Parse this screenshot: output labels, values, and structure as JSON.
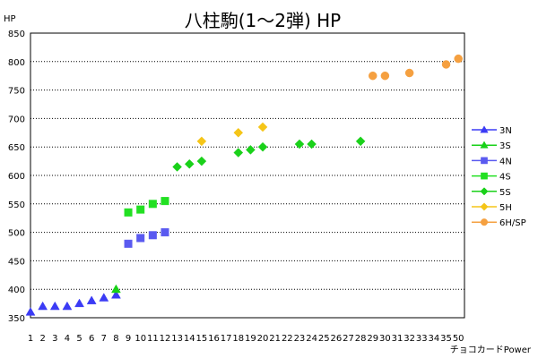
{
  "chart_data": {
    "type": "scatter",
    "title": "八柱駒(1～2弾) HP",
    "ylabel": "HP",
    "xlabel": "チョコカードPower",
    "ylim": [
      350,
      850
    ],
    "yticks": [
      350,
      400,
      450,
      500,
      550,
      600,
      650,
      700,
      750,
      800,
      850
    ],
    "xticks": [
      "1",
      "2",
      "3",
      "4",
      "5",
      "6",
      "7",
      "8",
      "9",
      "10",
      "11",
      "12",
      "13",
      "14",
      "15",
      "16",
      "17",
      "18",
      "19",
      "20",
      "21",
      "22",
      "23",
      "24",
      "25",
      "26",
      "27",
      "28",
      "29",
      "30",
      "31",
      "32",
      "33",
      "34",
      "35",
      "50"
    ],
    "grid": "horizontal dotted",
    "legend_position": "right",
    "series": [
      {
        "name": "3N",
        "marker": "triangle",
        "color": "#3b3bf5",
        "x": [
          "1",
          "2",
          "3",
          "4",
          "5",
          "6",
          "7",
          "8"
        ],
        "y": [
          360,
          370,
          370,
          370,
          375,
          380,
          385,
          390
        ]
      },
      {
        "name": "3S",
        "marker": "triangle",
        "color": "#18d118",
        "x": [
          "8"
        ],
        "y": [
          400
        ]
      },
      {
        "name": "4N",
        "marker": "square",
        "color": "#5a5af0",
        "x": [
          "9",
          "10",
          "11",
          "12"
        ],
        "y": [
          480,
          490,
          495,
          500
        ]
      },
      {
        "name": "4S",
        "marker": "square",
        "color": "#22e022",
        "x": [
          "9",
          "10",
          "11",
          "12"
        ],
        "y": [
          535,
          540,
          550,
          555
        ]
      },
      {
        "name": "5S",
        "marker": "diamond",
        "color": "#1ad11a",
        "x": [
          "13",
          "14",
          "15",
          "18",
          "19",
          "20",
          "23",
          "24",
          "28"
        ],
        "y": [
          615,
          620,
          625,
          640,
          645,
          650,
          655,
          655,
          660
        ]
      },
      {
        "name": "5H",
        "marker": "diamond",
        "color": "#f5c518",
        "x": [
          "15",
          "18",
          "20"
        ],
        "y": [
          660,
          675,
          685
        ]
      },
      {
        "name": "6H/SP",
        "marker": "circle",
        "color": "#f5a040",
        "x": [
          "29",
          "30",
          "32",
          "35",
          "50"
        ],
        "y": [
          775,
          775,
          780,
          795,
          805
        ]
      }
    ]
  }
}
